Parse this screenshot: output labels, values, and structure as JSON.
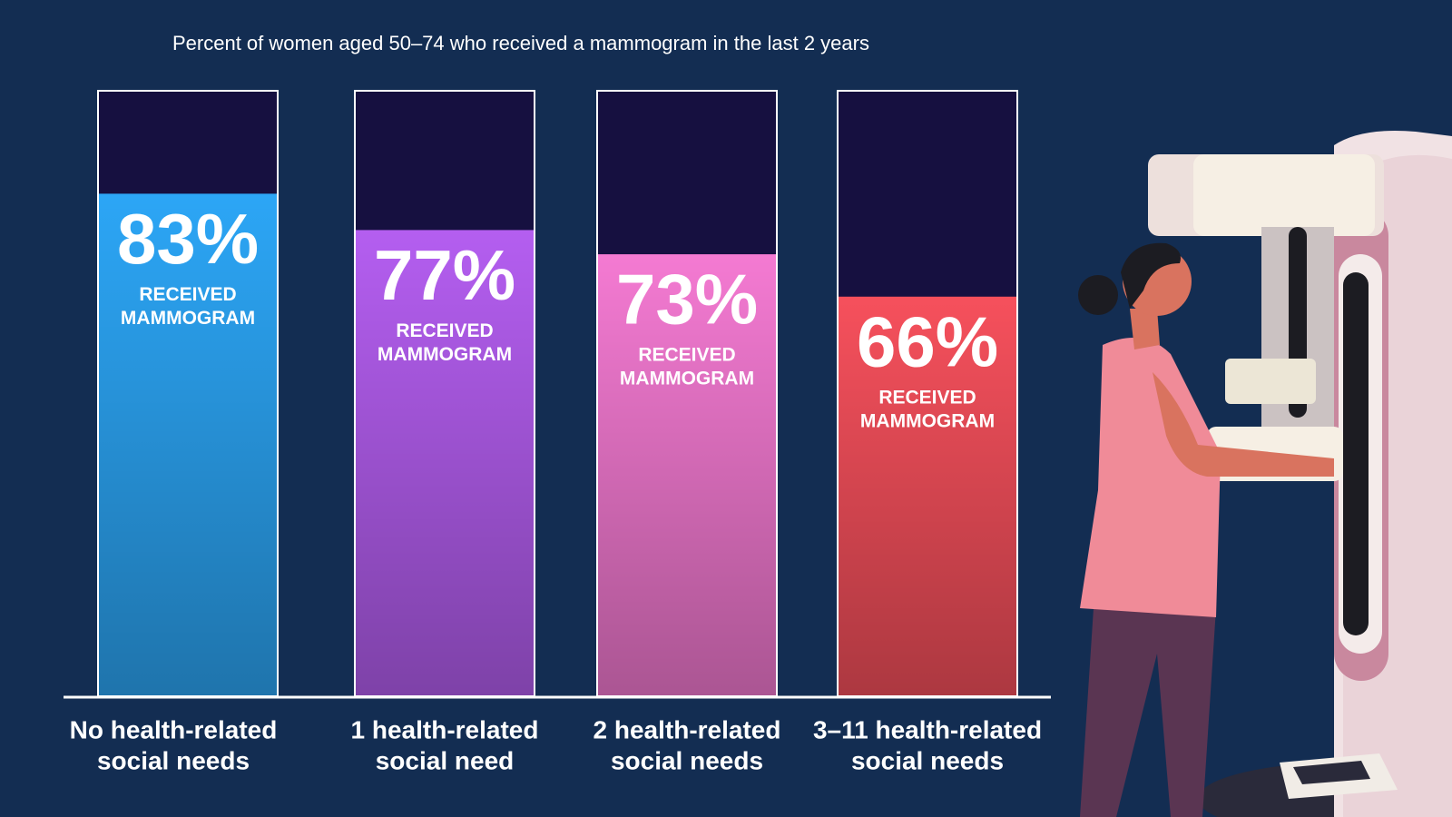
{
  "chart_data": {
    "type": "bar",
    "title": "Percent of women aged 50–74 who received a mammogram in the last 2 years",
    "categories": [
      [
        "No health-related",
        "social needs"
      ],
      [
        "1 health-related",
        "social need"
      ],
      [
        "2 health-related",
        "social needs"
      ],
      [
        "3–11 health-related",
        "social needs"
      ]
    ],
    "values": [
      83,
      77,
      73,
      66
    ],
    "value_labels": [
      "83%",
      "77%",
      "73%",
      "66%"
    ],
    "bar_caption": [
      "RECEIVED",
      "MAMMOGRAM"
    ],
    "colors": [
      "#2ca6f6",
      "#b45ef0",
      "#f47ad2",
      "#f6505c"
    ],
    "ylim": [
      0,
      100
    ]
  }
}
